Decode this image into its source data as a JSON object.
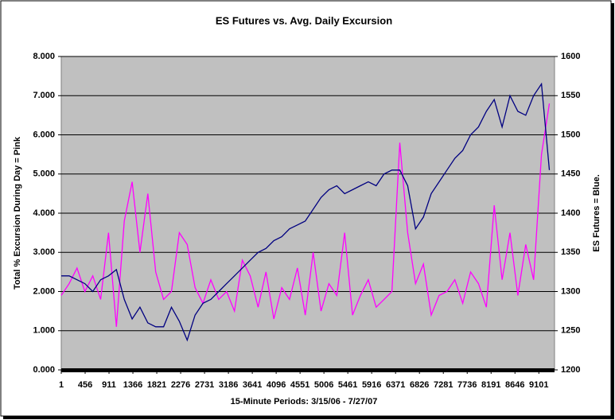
{
  "chart_data": {
    "type": "line",
    "title": "ES Futures vs. Avg. Daily Excursion",
    "xlabel": "15-Minute Periods: 3/15/06 - 7/27/07",
    "ylabel": "Total % Excursion During Day = Pink",
    "y2label": "ES Futures = Blue.",
    "x": [
      1,
      151,
      301,
      451,
      601,
      751,
      901,
      1051,
      1201,
      1351,
      1501,
      1651,
      1801,
      1951,
      2101,
      2251,
      2401,
      2551,
      2701,
      2851,
      3001,
      3151,
      3301,
      3451,
      3601,
      3751,
      3901,
      4051,
      4201,
      4351,
      4501,
      4651,
      4801,
      4951,
      5101,
      5251,
      5401,
      5551,
      5701,
      5851,
      6001,
      6151,
      6301,
      6451,
      6601,
      6751,
      6901,
      7051,
      7201,
      7351,
      7501,
      7651,
      7801,
      7951,
      8101,
      8251,
      8401,
      8551,
      8701,
      8851,
      9001,
      9151,
      9301
    ],
    "series": [
      {
        "name": "Total % Excursion During Day",
        "color": "#ff00ff",
        "axis": "y",
        "values": [
          1.9,
          2.2,
          2.6,
          2.0,
          2.4,
          1.8,
          3.5,
          1.1,
          3.8,
          4.8,
          3.0,
          4.5,
          2.5,
          1.8,
          2.0,
          3.5,
          3.2,
          2.1,
          1.7,
          2.3,
          1.8,
          2.0,
          1.5,
          2.8,
          2.4,
          1.6,
          2.5,
          1.3,
          2.1,
          1.8,
          2.6,
          1.4,
          3.0,
          1.5,
          2.2,
          1.9,
          3.5,
          1.4,
          1.9,
          2.3,
          1.6,
          1.8,
          2.0,
          5.8,
          3.5,
          2.2,
          2.7,
          1.4,
          1.9,
          2.0,
          2.3,
          1.7,
          2.5,
          2.2,
          1.6,
          4.2,
          2.3,
          3.5,
          1.9,
          3.2,
          2.3,
          5.5,
          6.8
        ]
      },
      {
        "name": "ES Futures",
        "color": "#000080",
        "axis": "y2",
        "values": [
          1320,
          1320,
          1315,
          1310,
          1300,
          1315,
          1320,
          1328,
          1290,
          1265,
          1280,
          1260,
          1255,
          1255,
          1280,
          1262,
          1238,
          1270,
          1285,
          1290,
          1300,
          1310,
          1320,
          1330,
          1340,
          1350,
          1355,
          1365,
          1370,
          1380,
          1385,
          1390,
          1405,
          1420,
          1430,
          1435,
          1425,
          1430,
          1435,
          1440,
          1435,
          1450,
          1455,
          1455,
          1435,
          1380,
          1395,
          1425,
          1440,
          1455,
          1470,
          1480,
          1500,
          1510,
          1530,
          1545,
          1510,
          1550,
          1530,
          1525,
          1550,
          1565,
          1455
        ]
      }
    ],
    "xlim": [
      1,
      9400
    ],
    "xticks": [
      1,
      456,
      911,
      1366,
      1821,
      2276,
      2731,
      3186,
      3641,
      4096,
      4551,
      5006,
      5461,
      5916,
      6371,
      6826,
      7281,
      7736,
      8191,
      8646,
      9101
    ],
    "ylim": [
      0,
      8
    ],
    "yticks": [
      {
        "value": 0,
        "label": "0.000"
      },
      {
        "value": 1,
        "label": "1.000"
      },
      {
        "value": 2,
        "label": "2.000"
      },
      {
        "value": 3,
        "label": "3.000"
      },
      {
        "value": 4,
        "label": "4.000"
      },
      {
        "value": 5,
        "label": "5.000"
      },
      {
        "value": 6,
        "label": "6.000"
      },
      {
        "value": 7,
        "label": "7.000"
      },
      {
        "value": 8,
        "label": "8.000"
      }
    ],
    "y2lim": [
      1200,
      1600
    ],
    "y2ticks": [
      1200,
      1250,
      1300,
      1350,
      1400,
      1450,
      1500,
      1550,
      1600
    ],
    "grid": true
  }
}
